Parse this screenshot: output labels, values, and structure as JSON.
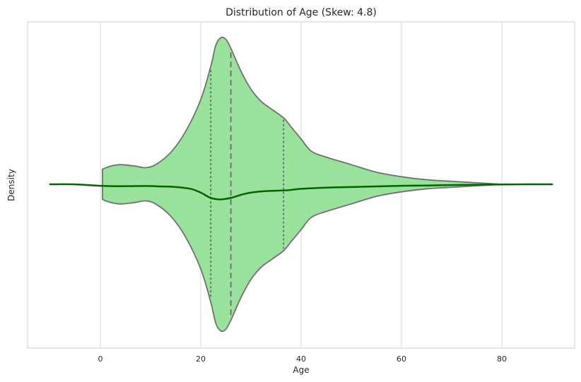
{
  "chart_data": {
    "type": "violin",
    "title": "Distribution of Age (Skew: 4.8)",
    "xlabel": "Age",
    "ylabel": "Density",
    "xlim": [
      -14.5,
      94.5
    ],
    "xticks": [
      0,
      20,
      40,
      60,
      80
    ],
    "grid": true,
    "violin": {
      "min": 0.42,
      "max": 80,
      "quartiles": {
        "q1": 22,
        "median": 26,
        "q3": 36.5
      },
      "density_profile": [
        [
          0.42,
          0.1
        ],
        [
          2,
          0.12
        ],
        [
          4,
          0.13
        ],
        [
          7,
          0.12
        ],
        [
          9,
          0.11
        ],
        [
          11,
          0.13
        ],
        [
          14,
          0.21
        ],
        [
          17,
          0.35
        ],
        [
          20,
          0.56
        ],
        [
          22,
          0.78
        ],
        [
          23,
          0.92
        ],
        [
          24,
          0.97
        ],
        [
          25,
          0.96
        ],
        [
          26,
          0.9
        ],
        [
          28,
          0.75
        ],
        [
          30,
          0.63
        ],
        [
          32,
          0.55
        ],
        [
          34,
          0.5
        ],
        [
          36.5,
          0.44
        ],
        [
          38,
          0.38
        ],
        [
          40,
          0.3
        ],
        [
          42,
          0.22
        ],
        [
          45,
          0.18
        ],
        [
          50,
          0.13
        ],
        [
          55,
          0.08
        ],
        [
          60,
          0.05
        ],
        [
          65,
          0.03
        ],
        [
          70,
          0.02
        ],
        [
          75,
          0.01
        ],
        [
          80,
          0.0
        ]
      ],
      "fill_color": "#99e29b",
      "edge_color": "#707070",
      "quartile_color": "#6b6b6b"
    },
    "kde_line": {
      "color": "#006400",
      "points": [
        [
          -10,
          0.0
        ],
        [
          -5,
          -0.0005
        ],
        [
          0,
          -0.01
        ],
        [
          3,
          -0.013
        ],
        [
          6,
          -0.012
        ],
        [
          9,
          -0.011
        ],
        [
          12,
          -0.014
        ],
        [
          15,
          -0.018
        ],
        [
          18,
          -0.03
        ],
        [
          20,
          -0.055
        ],
        [
          22,
          -0.09
        ],
        [
          24,
          -0.1
        ],
        [
          26,
          -0.09
        ],
        [
          28,
          -0.07
        ],
        [
          30,
          -0.055
        ],
        [
          33,
          -0.045
        ],
        [
          37,
          -0.04
        ],
        [
          40,
          -0.03
        ],
        [
          45,
          -0.022
        ],
        [
          50,
          -0.018
        ],
        [
          55,
          -0.014
        ],
        [
          60,
          -0.01
        ],
        [
          65,
          -0.008
        ],
        [
          70,
          -0.005
        ],
        [
          75,
          -0.003
        ],
        [
          80,
          -0.001
        ],
        [
          85,
          0.0
        ],
        [
          90,
          0.0
        ]
      ]
    }
  }
}
